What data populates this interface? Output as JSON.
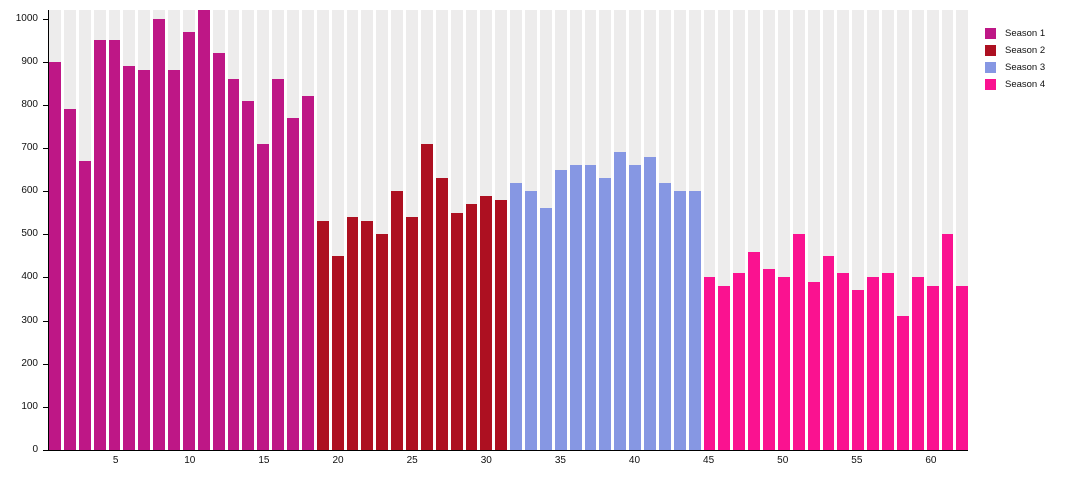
{
  "chart_data": {
    "type": "bar",
    "title": "",
    "xlabel": "",
    "ylabel": "",
    "ylim": [
      0,
      1020
    ],
    "xlim": [
      1,
      62
    ],
    "yticks": [
      0,
      100,
      200,
      300,
      400,
      500,
      600,
      700,
      800,
      900,
      1000
    ],
    "xticks": [
      5,
      10,
      15,
      20,
      25,
      30,
      35,
      40,
      45,
      50,
      55,
      60
    ],
    "grid": false,
    "legend_position": "top-right",
    "plot_band_color": "#EDECEC",
    "series": [
      {
        "name": "Season 1",
        "color": "#BE1786",
        "start_x": 1,
        "values": [
          900,
          790,
          670,
          950,
          950,
          890,
          880,
          1000,
          880,
          970,
          1020,
          920,
          860,
          810,
          710,
          860,
          770,
          820
        ]
      },
      {
        "name": "Season 2",
        "color": "#AD1021",
        "start_x": 19,
        "values": [
          530,
          450,
          540,
          530,
          500,
          600,
          540,
          710,
          630,
          550,
          570,
          590,
          580
        ]
      },
      {
        "name": "Season 3",
        "color": "#8697E3",
        "start_x": 32,
        "values": [
          620,
          600,
          560,
          650,
          660,
          660,
          630,
          690,
          660,
          680,
          620,
          600,
          600
        ]
      },
      {
        "name": "Season 4",
        "color": "#FA1290",
        "start_x": 45,
        "values": [
          400,
          380,
          410,
          460,
          420,
          400,
          500,
          390,
          450,
          410,
          370,
          400,
          410,
          310,
          400,
          380,
          500,
          380
        ]
      }
    ]
  }
}
